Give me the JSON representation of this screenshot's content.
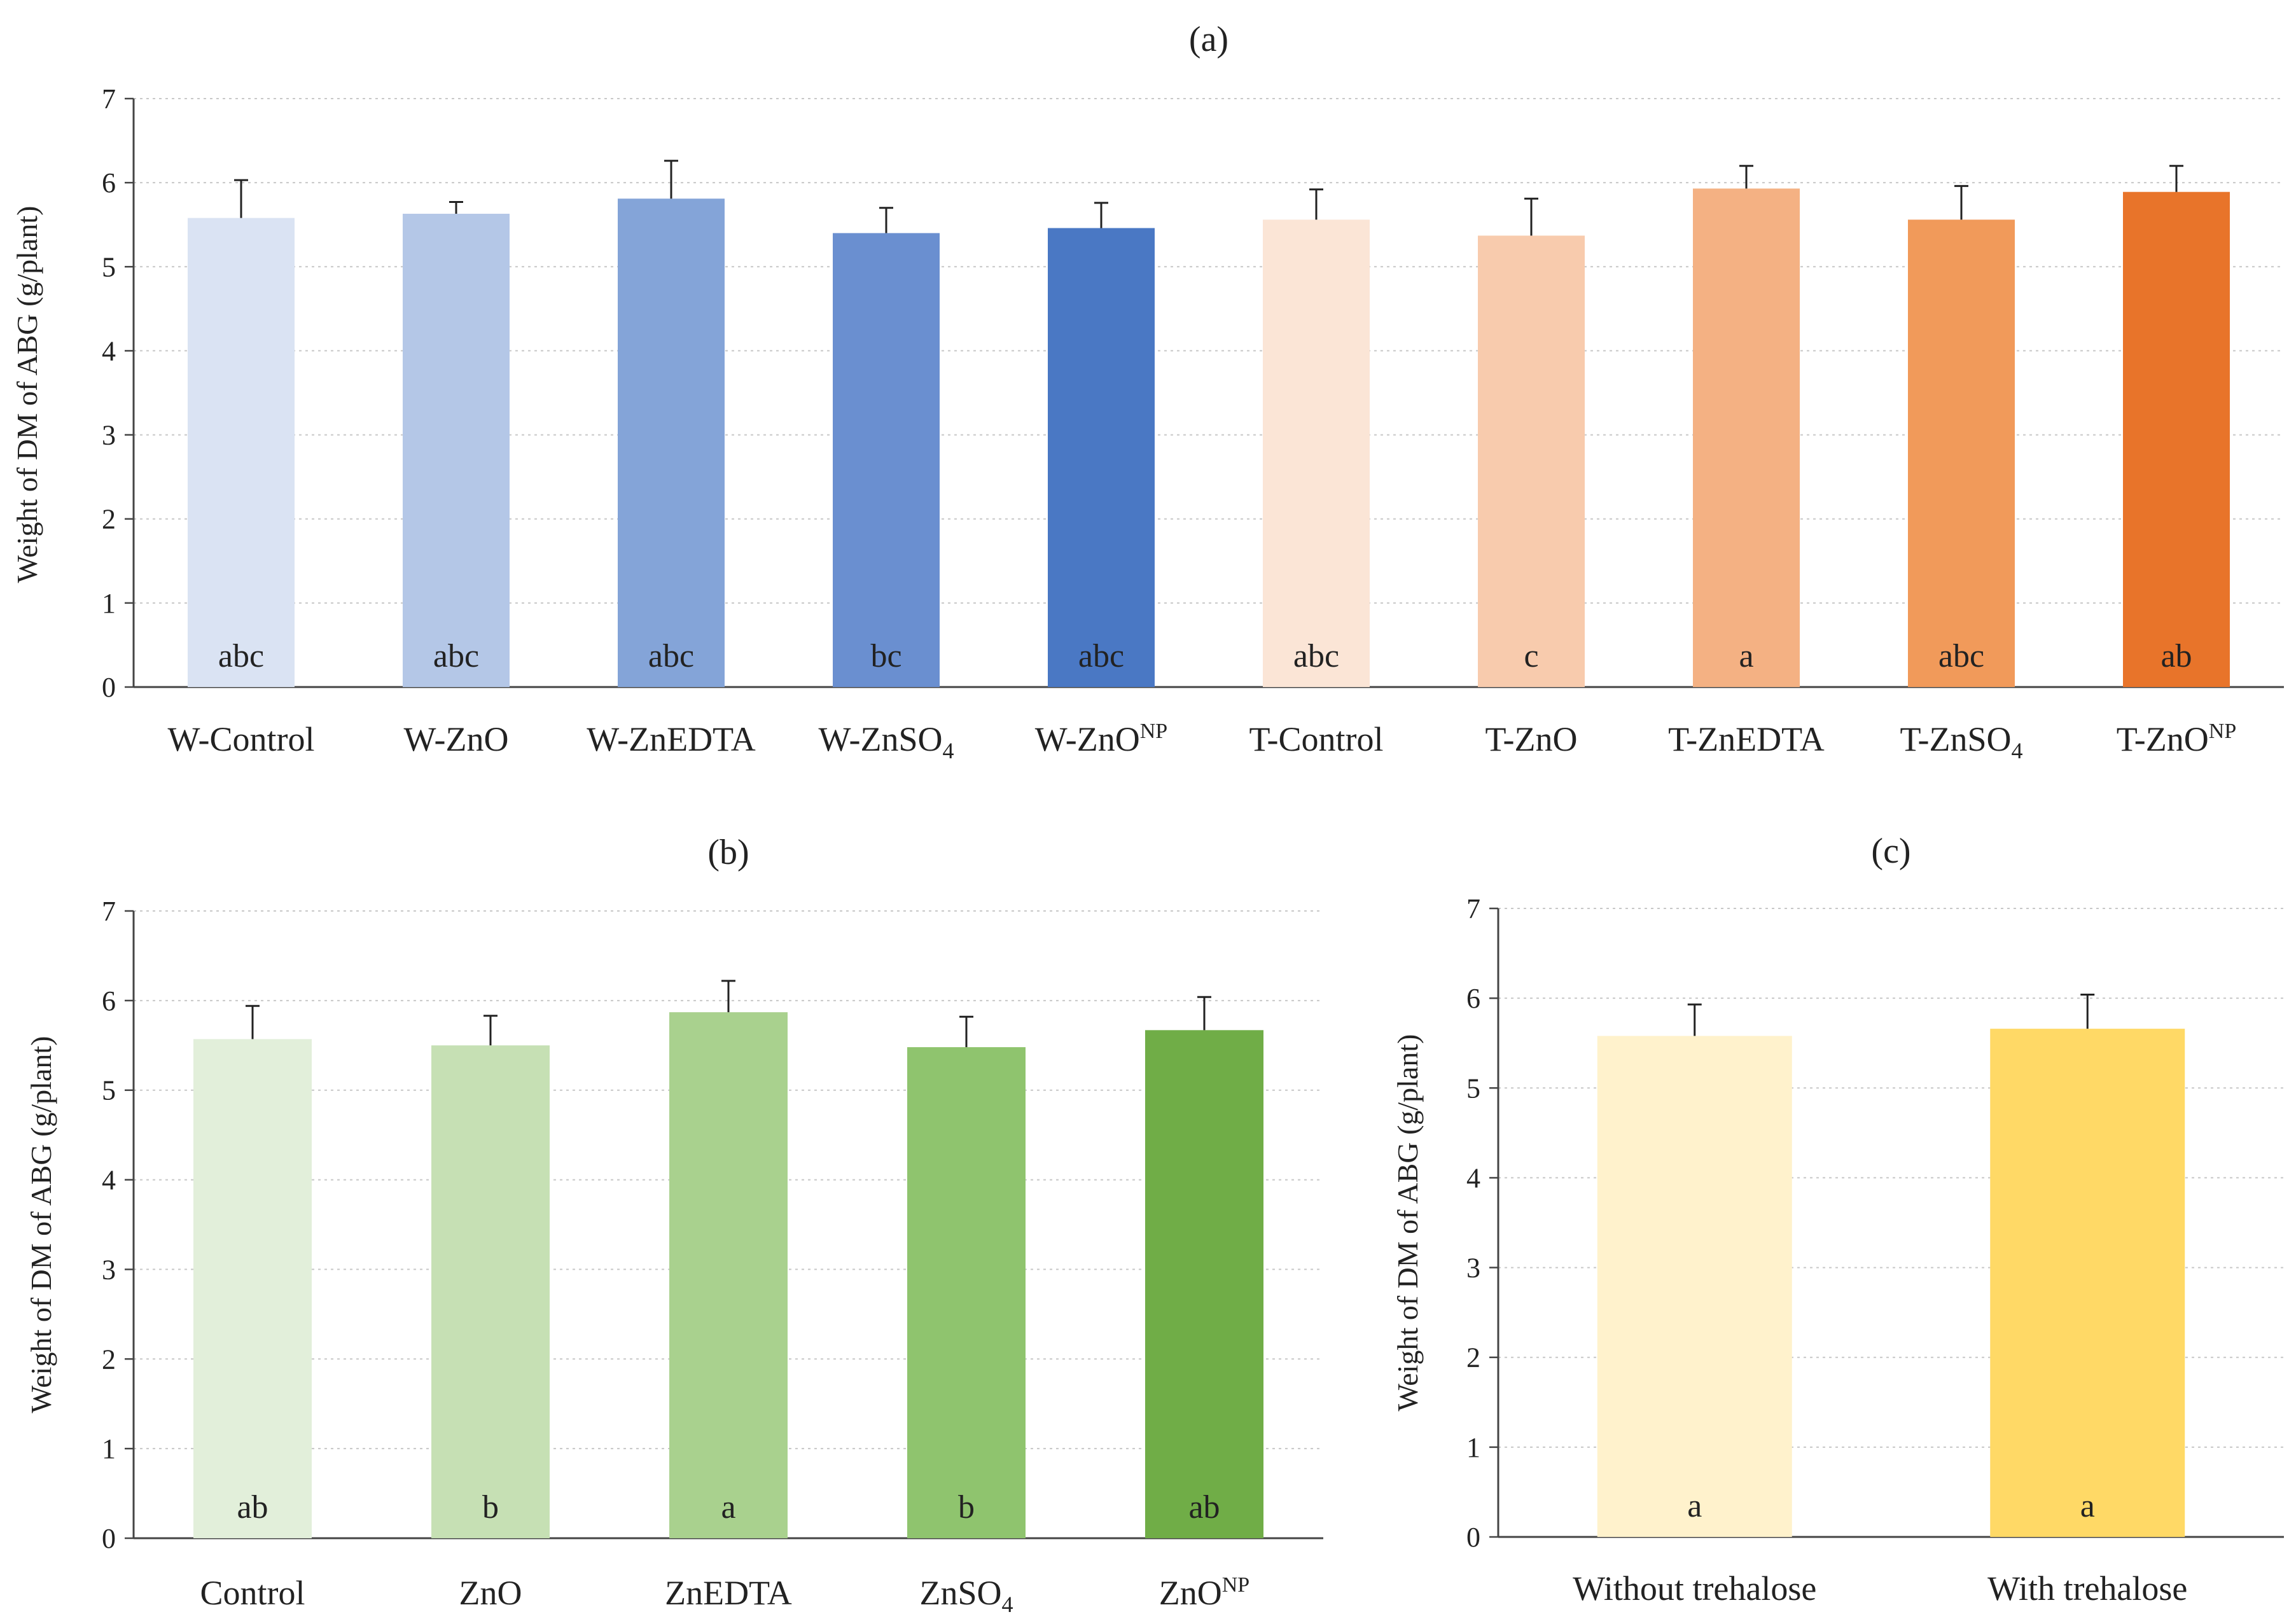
{
  "chart_data": [
    {
      "type": "bar",
      "panel_label": "(a)",
      "ylabel": "Weight of DM of ABG (g/plant)",
      "ylim": [
        0,
        7
      ],
      "yticks": [
        "0",
        "1",
        "2",
        "3",
        "4",
        "5",
        "6",
        "7"
      ],
      "grid": true,
      "categories": [
        {
          "text": "W-Control"
        },
        {
          "text": "W-ZnO"
        },
        {
          "text": "W-ZnEDTA"
        },
        {
          "text": "W-ZnSO",
          "sub": "4"
        },
        {
          "text": "W-ZnO",
          "sup": "NP"
        },
        {
          "text": "T-Control"
        },
        {
          "text": "T-ZnO"
        },
        {
          "text": "T-ZnEDTA"
        },
        {
          "text": "T-ZnSO",
          "sub": "4"
        },
        {
          "text": "T-ZnO",
          "sup": "NP"
        }
      ],
      "values": [
        5.58,
        5.63,
        5.81,
        5.4,
        5.46,
        5.56,
        5.37,
        5.93,
        5.56,
        5.89
      ],
      "errors": [
        0.45,
        0.14,
        0.45,
        0.3,
        0.3,
        0.36,
        0.44,
        0.27,
        0.4,
        0.31
      ],
      "labels": [
        "abc",
        "abc",
        "abc",
        "bc",
        "abc",
        "abc",
        "c",
        "a",
        "abc",
        "ab"
      ],
      "colors": [
        "#dae3f3",
        "#b4c7e7",
        "#84a4d8",
        "#6a8fd0",
        "#4a78c4",
        "#fbe5d6",
        "#f8cbad",
        "#f4b183",
        "#f19a5a",
        "#e8742a"
      ]
    },
    {
      "type": "bar",
      "panel_label": "(b)",
      "ylabel": "Weight of DM of ABG (g/plant)",
      "ylim": [
        0,
        7
      ],
      "yticks": [
        "0",
        "1",
        "2",
        "3",
        "4",
        "5",
        "6",
        "7"
      ],
      "grid": true,
      "categories": [
        {
          "text": "Control"
        },
        {
          "text": "ZnO"
        },
        {
          "text": "ZnEDTA"
        },
        {
          "text": "ZnSO",
          "sub": "4"
        },
        {
          "text": "ZnO",
          "sup": "NP"
        }
      ],
      "values": [
        5.57,
        5.5,
        5.87,
        5.48,
        5.67
      ],
      "errors": [
        0.37,
        0.33,
        0.35,
        0.34,
        0.37
      ],
      "labels": [
        "ab",
        "b",
        "a",
        "b",
        "ab"
      ],
      "colors": [
        "#e2efda",
        "#c6e0b4",
        "#a9d18e",
        "#8fc46e",
        "#70ad47"
      ]
    },
    {
      "type": "bar",
      "panel_label": "(c)",
      "ylabel": "Weight of DM of ABG (g/plant)",
      "ylim": [
        0,
        7
      ],
      "yticks": [
        "0",
        "1",
        "2",
        "3",
        "4",
        "5",
        "6",
        "7"
      ],
      "grid": true,
      "categories": [
        {
          "text": "Without trehalose"
        },
        {
          "text": "With trehalose"
        }
      ],
      "values": [
        5.58,
        5.66
      ],
      "errors": [
        0.35,
        0.38
      ],
      "labels": [
        "a",
        "a"
      ],
      "colors": [
        "#fff2cc",
        "#ffd966"
      ]
    }
  ]
}
